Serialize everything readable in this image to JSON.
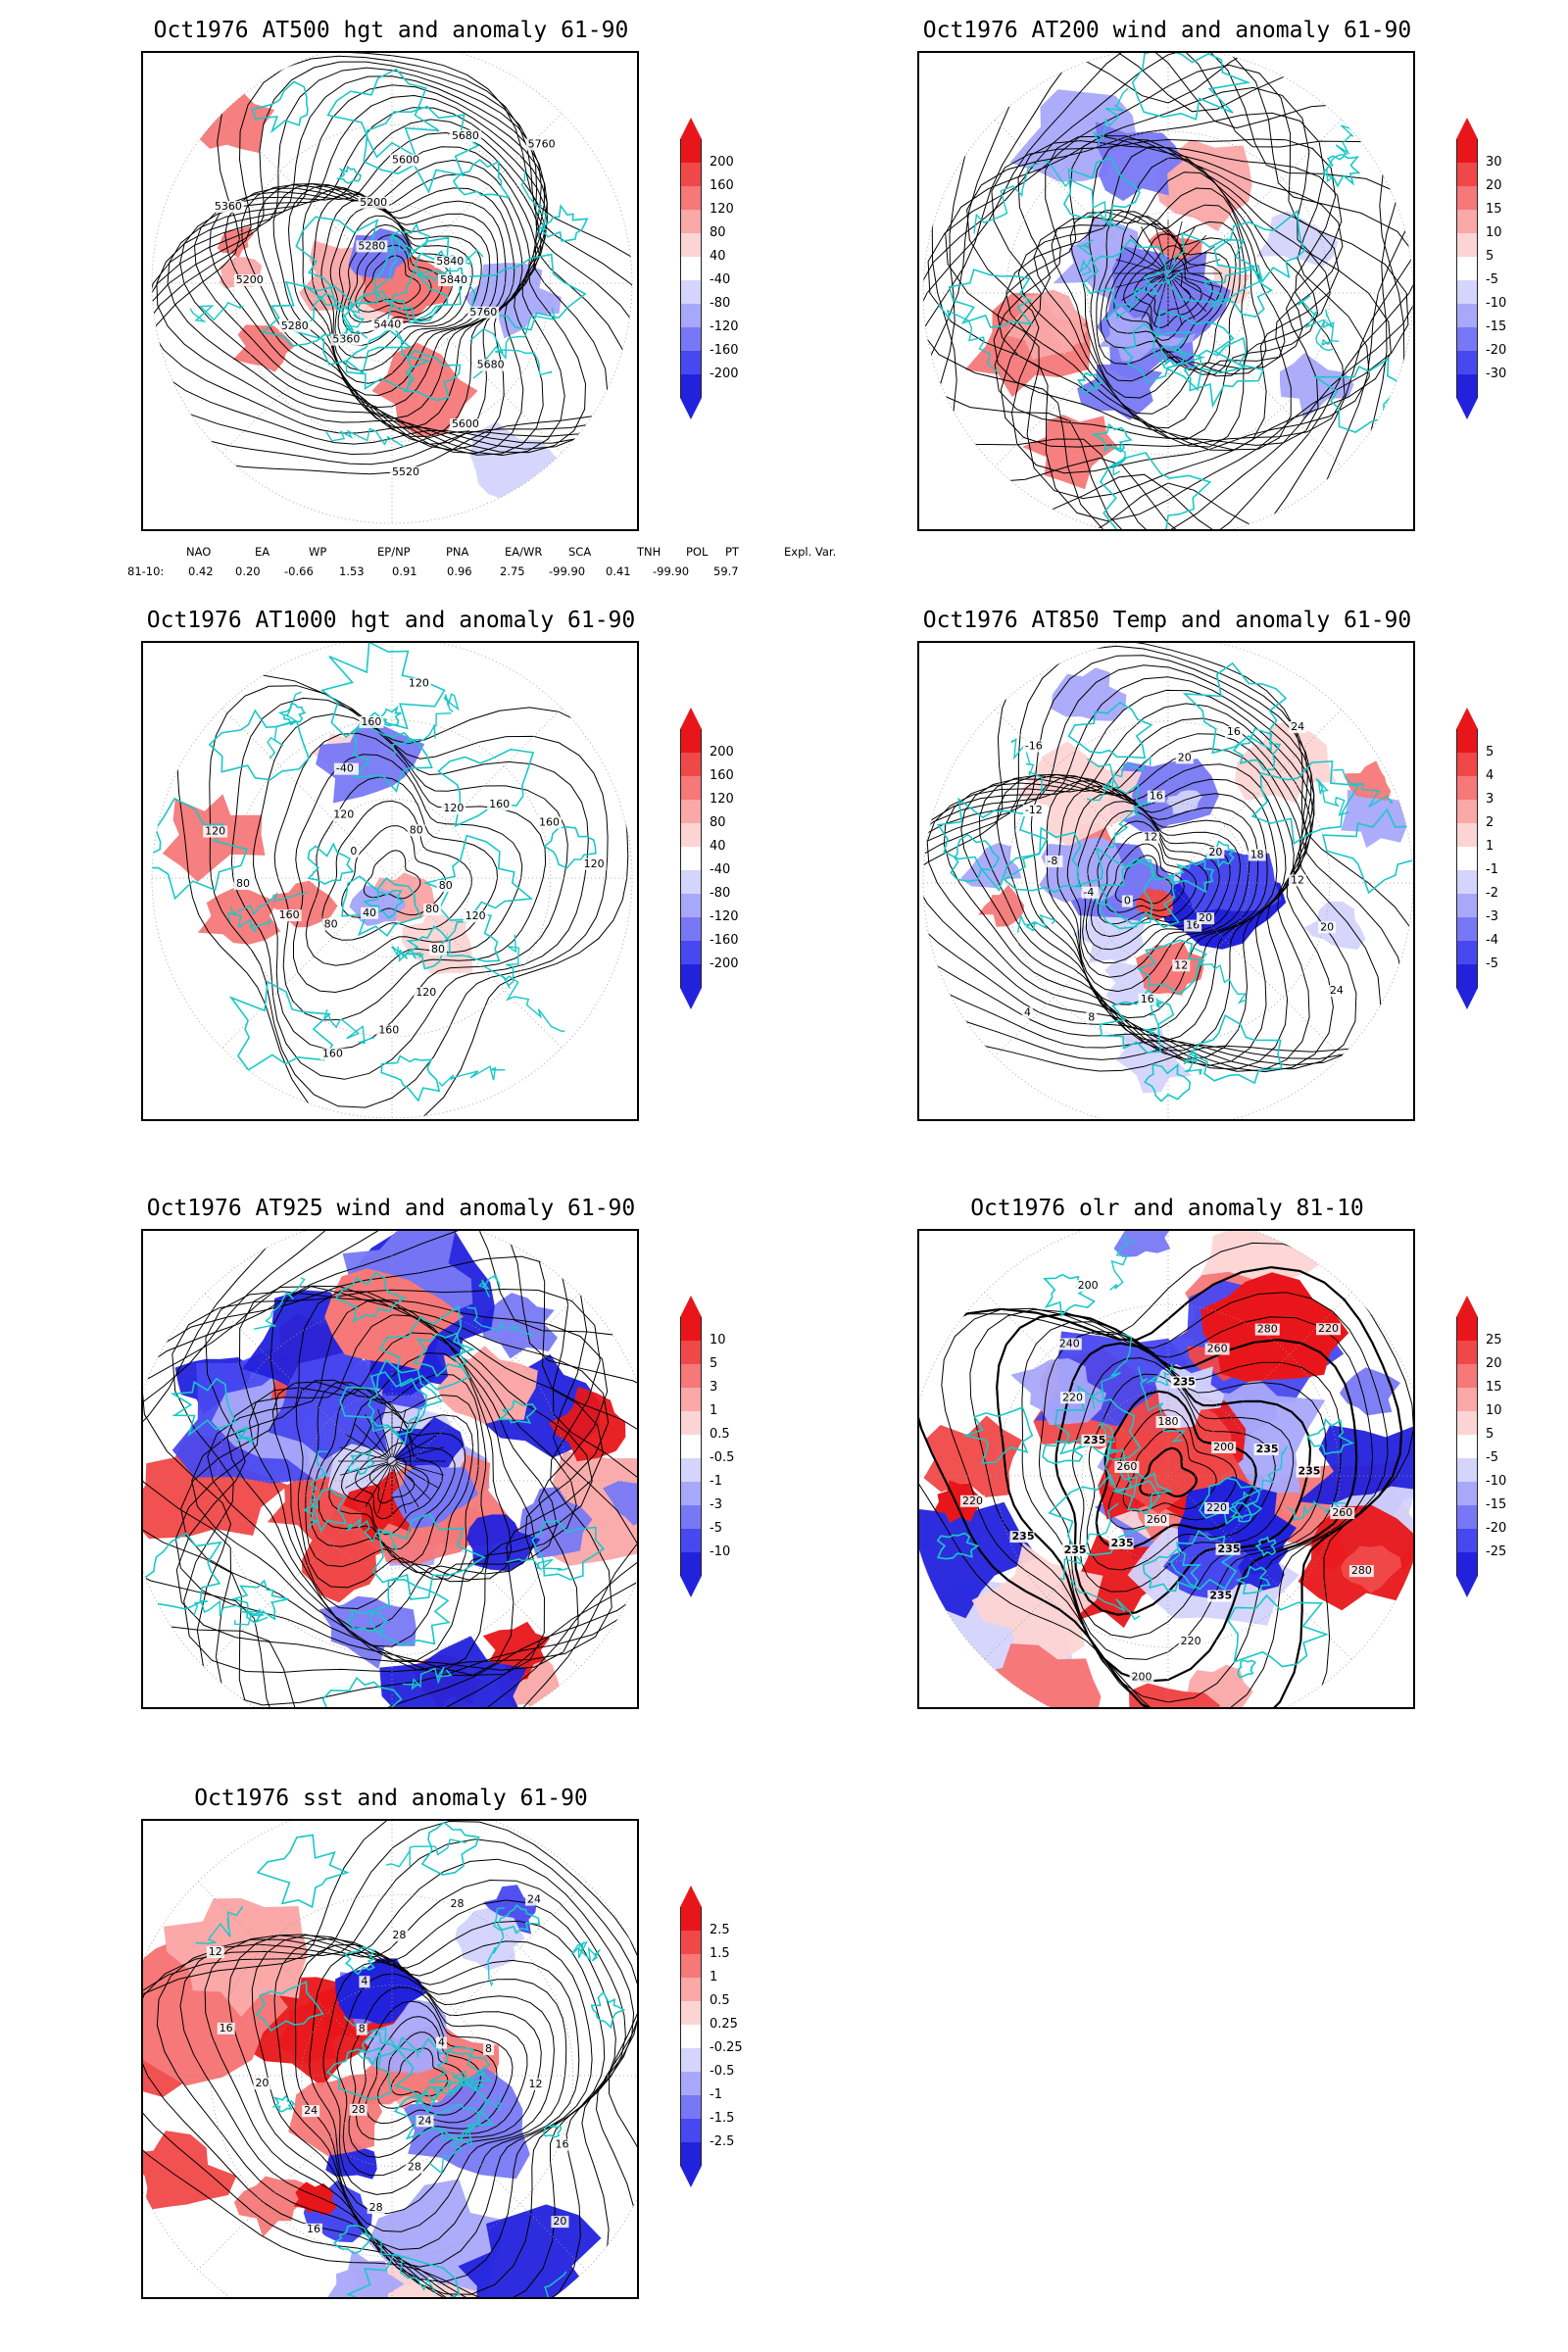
{
  "panels": [
    {
      "id": "p1",
      "title": "Oct1976 AT500 hgt and anomaly 61-90",
      "kind": "hgt500",
      "colorbar": {
        "labels": [
          "200",
          "160",
          "120",
          "80",
          "40",
          "-40",
          "-80",
          "-120",
          "-160",
          "-200"
        ]
      },
      "contour_labels": [
        "5840",
        "5760",
        "5680",
        "5600",
        "5520",
        "5440",
        "5360",
        "5280",
        "5200",
        "5360",
        "5280",
        "5200",
        "5600",
        "5680",
        "5760",
        "5840"
      ]
    },
    {
      "id": "p2",
      "title": "Oct1976 AT200 wind and anomaly 61-90",
      "kind": "wind200",
      "colorbar": {
        "labels": [
          "30",
          "20",
          "15",
          "10",
          "5",
          "-5",
          "-10",
          "-15",
          "-20",
          "-30"
        ]
      },
      "contour_labels": []
    },
    {
      "id": "p3",
      "title": "Oct1976 AT1000 hgt and anomaly 61-90",
      "kind": "hgt1000",
      "colorbar": {
        "labels": [
          "200",
          "160",
          "120",
          "80",
          "40",
          "-40",
          "-80",
          "-120",
          "-160",
          "-200"
        ]
      },
      "contour_labels": [
        "80",
        "80",
        "120",
        "160",
        "160",
        "40",
        "80",
        "160",
        "80",
        "120",
        "0",
        "120",
        "-40",
        "160",
        "120",
        "80",
        "120",
        "160",
        "160",
        "120",
        "80",
        "120"
      ]
    },
    {
      "id": "p4",
      "title": "Oct1976 AT850 Temp and anomaly 61-90",
      "kind": "temp850",
      "colorbar": {
        "labels": [
          "5",
          "4",
          "3",
          "2",
          "1",
          "-1",
          "-2",
          "-3",
          "-4",
          "-5"
        ]
      },
      "contour_labels": [
        "16",
        "12",
        "16",
        "8",
        "4",
        "0",
        "-4",
        "-8",
        "-12",
        "-16",
        "12",
        "16",
        "20",
        "16",
        "24",
        "20",
        "18",
        "12",
        "20",
        "24",
        "20"
      ]
    },
    {
      "id": "p5",
      "title": "Oct1976 AT925 wind and anomaly 61-90",
      "kind": "wind925",
      "colorbar": {
        "labels": [
          "10",
          "5",
          "3",
          "1",
          "0.5",
          "-0.5",
          "-1",
          "-3",
          "-5",
          "-10"
        ]
      },
      "contour_labels": []
    },
    {
      "id": "p6",
      "title": "Oct1976 olr and anomaly 81-10",
      "kind": "olr",
      "colorbar": {
        "labels": [
          "25",
          "20",
          "15",
          "10",
          "5",
          "-5",
          "-10",
          "-15",
          "-20",
          "-25"
        ]
      },
      "contour_labels": [
        "260",
        "235",
        "235",
        "235",
        "220",
        "260",
        "235",
        "220",
        "240",
        "200",
        "180",
        "235",
        "260",
        "280",
        "220",
        "200",
        "235",
        "235",
        "260",
        "280",
        "220",
        "235",
        "235",
        "220",
        "200"
      ]
    },
    {
      "id": "p7",
      "title": "Oct1976 sst and anomaly 61-90",
      "kind": "sst",
      "colorbar": {
        "labels": [
          "2.5",
          "1.5",
          "1",
          "0.5",
          "0.25",
          "-0.25",
          "-0.5",
          "-1",
          "-1.5",
          "-2.5"
        ]
      },
      "contour_labels": [
        "28",
        "24",
        "20",
        "16",
        "12",
        "8",
        "4",
        "28",
        "28",
        "24",
        "4",
        "8",
        "12",
        "16",
        "20",
        "24",
        "28",
        "28",
        "16"
      ]
    }
  ],
  "indices": {
    "header": [
      "NAO",
      "EA",
      "WP",
      "EP/NP",
      "PNA",
      "EA/WR",
      "SCA",
      "TNH",
      "POL",
      "PT",
      "Expl. Var."
    ],
    "row_label": "81-10:",
    "values": [
      "0.42",
      "0.20",
      "-0.66",
      "1.53",
      "0.91",
      "0.96",
      "2.75",
      "-99.90",
      "0.41",
      "-99.90",
      "59.7"
    ]
  },
  "colors": {
    "pos": [
      "#e8161a",
      "#f04848",
      "#f67878",
      "#faa8a8",
      "#fdd4d4"
    ],
    "neg": [
      "#d4d4fd",
      "#a8a8fa",
      "#7878f6",
      "#4848f0",
      "#2222dd"
    ],
    "coast": "#19c8c8",
    "contour": "#000000",
    "grid": "#999999"
  }
}
